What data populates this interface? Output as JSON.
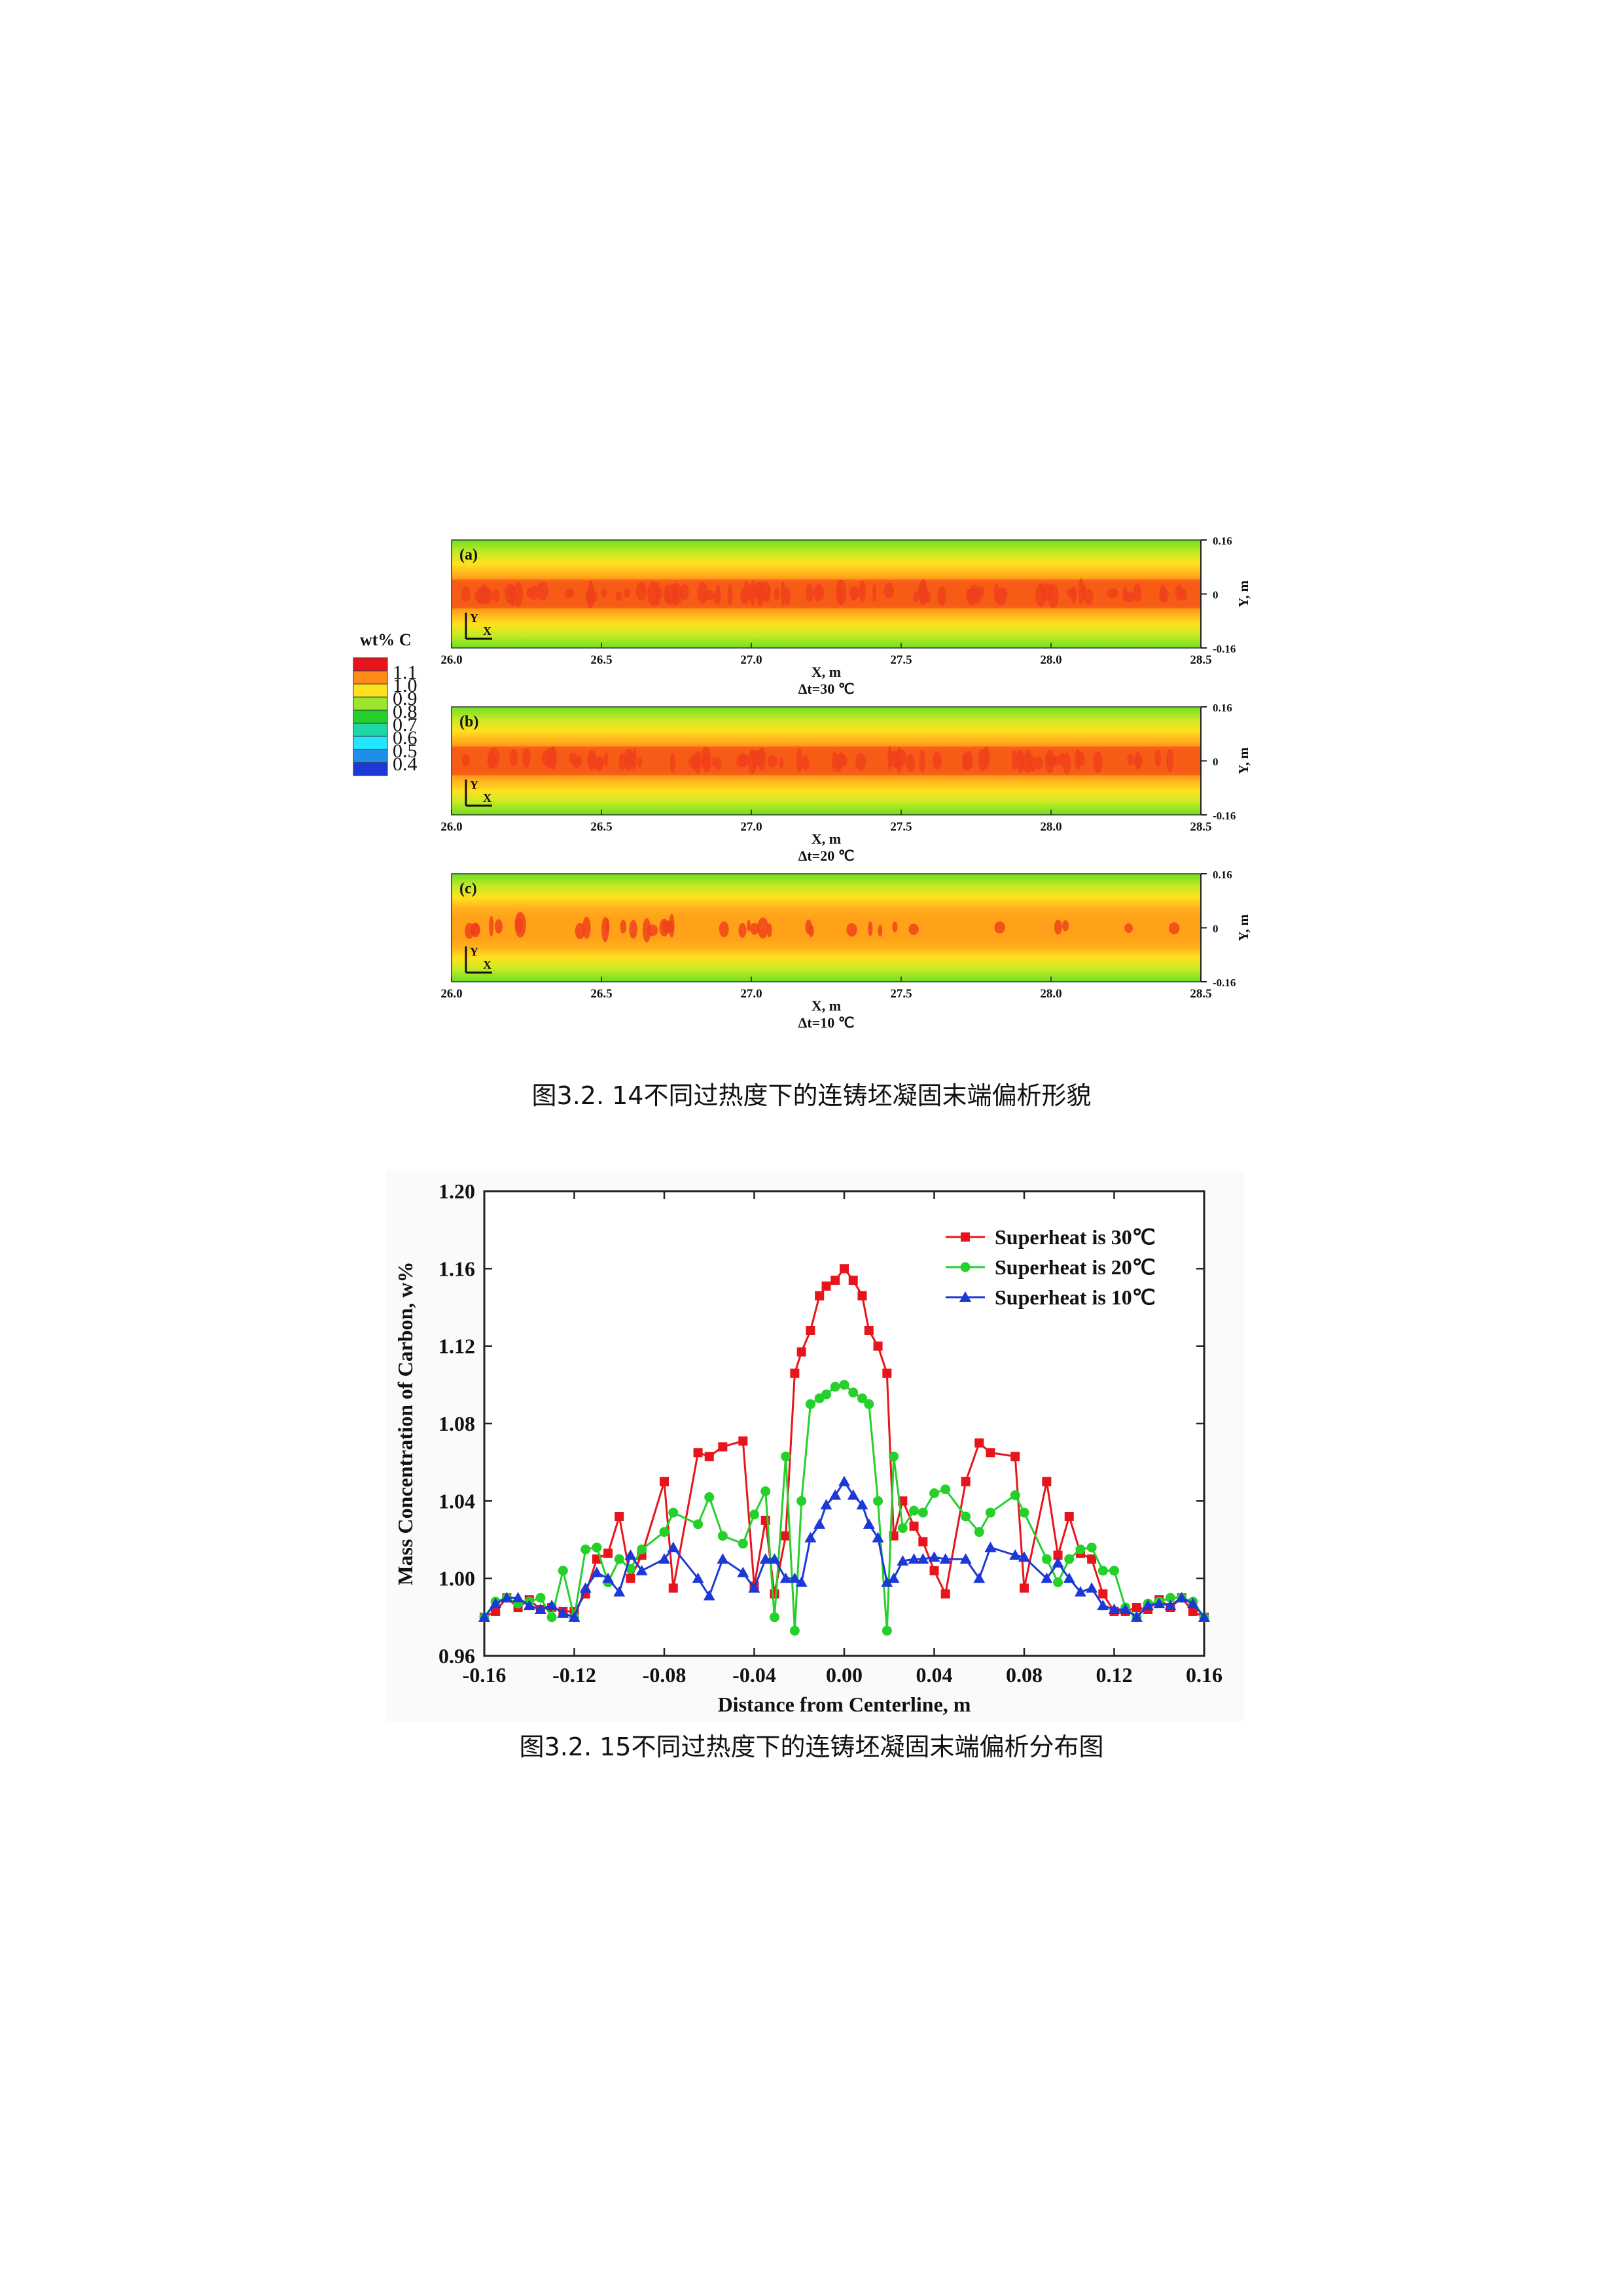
{
  "figure1": {
    "caption": "图3.2. 14不同过热度下的连铸坯凝固末端偏析形貌",
    "legend": {
      "title": "wt% C",
      "levels": [
        "1.1",
        "1.0",
        "0.9",
        "0.8",
        "0.7",
        "0.6",
        "0.5",
        "0.4"
      ],
      "colors": [
        "#e8141b",
        "#ff8a1c",
        "#ffe21e",
        "#9be62d",
        "#25d02b",
        "#1fd6a6",
        "#22e6ff",
        "#1d8fe8",
        "#1c39d8"
      ]
    },
    "panels": [
      {
        "tag": "(a)",
        "dt_label": "Δt=30 ℃"
      },
      {
        "tag": "(b)",
        "dt_label": "Δt=20 ℃"
      },
      {
        "tag": "(c)",
        "dt_label": "Δt=10 ℃"
      }
    ],
    "x_ticks": [
      "26.0",
      "26.5",
      "27.0",
      "27.5",
      "28.0",
      "28.5"
    ],
    "y_ticks": [
      "0.16",
      "0",
      "-0.16"
    ],
    "xlabel": "X, m",
    "ylabel": "Y, m",
    "axis_x": "X",
    "axis_y": "Y",
    "colors": {
      "field_edge": "#72e024",
      "field_mid": "#ffd21e",
      "field_core": "#ff7a12",
      "segregation": "#f0401a"
    }
  },
  "figure2": {
    "caption": "图3.2. 15不同过热度下的连铸坯凝固末端偏析分布图"
  },
  "chart_data": {
    "type": "line",
    "xlabel": "Distance from Centerline, m",
    "ylabel": "Mass Concentration of Carbon, w%",
    "xlim": [
      -0.16,
      0.16
    ],
    "ylim": [
      0.96,
      1.2
    ],
    "x_ticks": [
      "-0.16",
      "-0.12",
      "-0.08",
      "-0.04",
      "0.00",
      "0.04",
      "0.08",
      "0.12",
      "0.16"
    ],
    "y_ticks": [
      "0.96",
      "1.00",
      "1.04",
      "1.08",
      "1.12",
      "1.16",
      "1.20"
    ],
    "legend_position": "top-right",
    "x": [
      -0.16,
      -0.155,
      -0.15,
      -0.145,
      -0.14,
      -0.135,
      -0.13,
      -0.125,
      -0.12,
      -0.115,
      -0.11,
      -0.105,
      -0.1,
      -0.095,
      -0.09,
      -0.08,
      -0.076,
      -0.065,
      -0.06,
      -0.054,
      -0.045,
      -0.04,
      -0.035,
      -0.031,
      -0.026,
      -0.022,
      -0.019,
      -0.015,
      -0.011,
      -0.008,
      -0.004,
      0.0,
      0.004,
      0.008,
      0.011,
      0.015,
      0.019,
      0.022,
      0.026,
      0.031,
      0.035,
      0.04,
      0.045,
      0.054,
      0.06,
      0.065,
      0.076,
      0.08,
      0.09,
      0.095,
      0.1,
      0.105,
      0.11,
      0.115,
      0.12,
      0.125,
      0.13,
      0.135,
      0.14,
      0.145,
      0.15,
      0.155,
      0.16
    ],
    "series": [
      {
        "name": "Superheat is 30℃",
        "color": "#e8141b",
        "marker": "square",
        "values": [
          0.98,
          0.983,
          0.99,
          0.985,
          0.989,
          0.984,
          0.985,
          0.983,
          0.983,
          0.992,
          1.01,
          1.013,
          1.032,
          1.0,
          1.012,
          1.05,
          0.995,
          1.065,
          1.063,
          1.068,
          1.071,
          0.996,
          1.03,
          0.992,
          1.022,
          1.106,
          1.117,
          1.128,
          1.146,
          1.151,
          1.154,
          1.16,
          1.154,
          1.146,
          1.128,
          1.12,
          1.106,
          1.022,
          1.04,
          1.027,
          1.019,
          1.004,
          0.992,
          1.05,
          1.07,
          1.065,
          1.063,
          0.995,
          1.05,
          1.012,
          1.032,
          1.013,
          1.01,
          0.992,
          0.983,
          0.983,
          0.985,
          0.984,
          0.989,
          0.985,
          0.99,
          0.983,
          0.98
        ]
      },
      {
        "name": "Superheat is 20℃",
        "color": "#25d02b",
        "marker": "circle",
        "values": [
          0.98,
          0.988,
          0.99,
          0.987,
          0.988,
          0.99,
          0.98,
          1.004,
          0.98,
          1.015,
          1.016,
          0.998,
          1.01,
          1.005,
          1.015,
          1.024,
          1.034,
          1.028,
          1.042,
          1.022,
          1.018,
          1.033,
          1.045,
          0.98,
          1.063,
          0.973,
          1.04,
          1.09,
          1.093,
          1.095,
          1.099,
          1.1,
          1.096,
          1.093,
          1.09,
          1.04,
          0.973,
          1.063,
          1.026,
          1.035,
          1.034,
          1.044,
          1.046,
          1.032,
          1.024,
          1.034,
          1.043,
          1.034,
          1.01,
          0.998,
          1.01,
          1.015,
          1.016,
          1.004,
          1.004,
          0.985,
          0.98,
          0.987,
          0.988,
          0.99,
          0.99,
          0.988,
          0.98
        ]
      },
      {
        "name": "Superheat is 10℃",
        "color": "#1c39d8",
        "marker": "triangle",
        "values": [
          0.98,
          0.987,
          0.99,
          0.99,
          0.986,
          0.984,
          0.986,
          0.982,
          0.98,
          0.995,
          1.003,
          1.0,
          0.993,
          1.012,
          1.004,
          1.01,
          1.016,
          1.0,
          0.991,
          1.01,
          1.003,
          0.995,
          1.01,
          1.01,
          1.0,
          1.0,
          0.998,
          1.021,
          1.028,
          1.038,
          1.043,
          1.05,
          1.043,
          1.038,
          1.028,
          1.021,
          0.998,
          1.0,
          1.009,
          1.01,
          1.01,
          1.011,
          1.01,
          1.01,
          1.0,
          1.016,
          1.012,
          1.011,
          1.0,
          1.008,
          1.0,
          0.993,
          0.995,
          0.986,
          0.984,
          0.984,
          0.98,
          0.986,
          0.987,
          0.986,
          0.99,
          0.987,
          0.98
        ]
      }
    ]
  }
}
